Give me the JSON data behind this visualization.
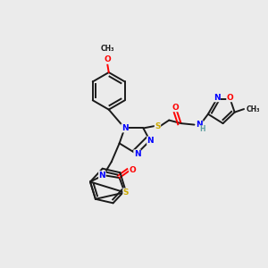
{
  "bg_color": "#ebebeb",
  "bond_color": "#1a1a1a",
  "atom_colors": {
    "N": "#0000ff",
    "O": "#ff0000",
    "S": "#ccaa00",
    "H": "#5f9ea0",
    "methyl": "#1a1a1a"
  },
  "figsize": [
    3.0,
    3.0
  ],
  "dpi": 100
}
